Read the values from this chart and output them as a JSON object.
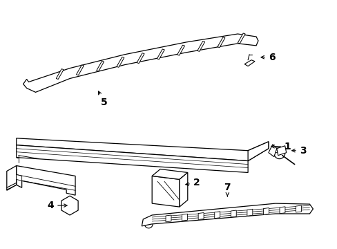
{
  "bg_color": "#ffffff",
  "line_color": "#000000",
  "figsize": [
    4.89,
    3.6
  ],
  "dpi": 100,
  "lw": 0.9,
  "label_fs": 10
}
